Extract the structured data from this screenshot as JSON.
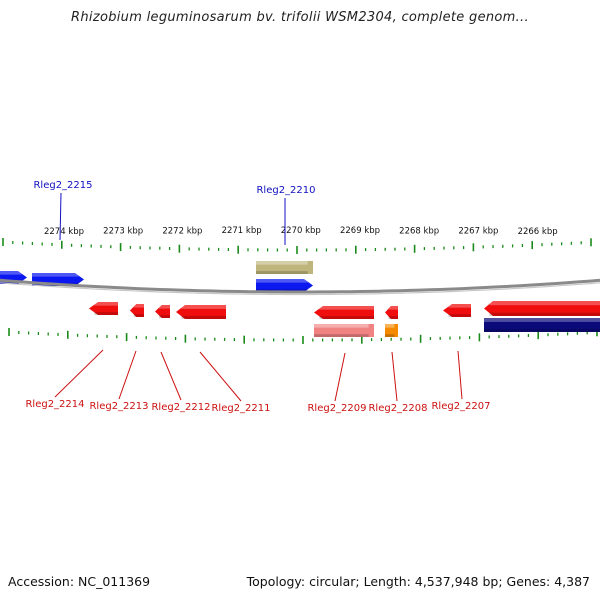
{
  "title": "Rhizobium leguminosarum bv. trifolii WSM2304, complete genom...",
  "footer": {
    "accession": "Accession: NC_011369",
    "summary": "Topology: circular; Length: 4,537,948 bp; Genes: 4,387"
  },
  "colors": {
    "tick": "#1a8a1a",
    "backbone": "#8a8a8a",
    "forward_gene": "#0b18f0",
    "reverse_gene": "#f00d0d",
    "upper_label": "#1010c0",
    "lower_label": "#cc1010",
    "olive_feature": "#bdb57c",
    "pink_feature": "#f08282",
    "orange_feature": "#f58a00",
    "navy_feature": "#0a0a7a"
  },
  "ruler": [
    {
      "label": "2274 kbp",
      "kbp": 2274
    },
    {
      "label": "2273 kbp",
      "kbp": 2273
    },
    {
      "label": "2272 kbp",
      "kbp": 2272
    },
    {
      "label": "2271 kbp",
      "kbp": 2271
    },
    {
      "label": "2270 kbp",
      "kbp": 2270
    },
    {
      "label": "2269 kbp",
      "kbp": 2269
    },
    {
      "label": "2268 kbp",
      "kbp": 2268
    },
    {
      "label": "2267 kbp",
      "kbp": 2267
    },
    {
      "label": "2266 kbp",
      "kbp": 2266
    }
  ],
  "gene_labels_upper": [
    {
      "label": "Rleg2_2215"
    },
    {
      "label": "Rleg2_2210"
    }
  ],
  "gene_labels_lower": [
    {
      "label": "Rleg2_2214"
    },
    {
      "label": "Rleg2_2213"
    },
    {
      "label": "Rleg2_2212"
    },
    {
      "label": "Rleg2_2211"
    },
    {
      "label": "Rleg2_2209"
    },
    {
      "label": "Rleg2_2208"
    },
    {
      "label": "Rleg2_2207"
    }
  ]
}
